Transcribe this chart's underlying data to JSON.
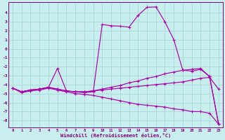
{
  "xlabel": "Windchill (Refroidissement éolien,°C)",
  "bg_color": "#c8eeed",
  "grid_color": "#a8d8d8",
  "line_color": "#800080",
  "line_color2": "#aa00aa",
  "curve_peak_x": [
    0,
    1,
    2,
    3,
    4,
    5,
    6,
    7,
    8,
    9,
    10,
    11,
    12,
    13,
    14,
    15,
    16,
    17,
    18,
    19,
    20,
    21,
    22,
    23
  ],
  "curve_peak_y": [
    -4.4,
    -4.8,
    -4.6,
    -4.5,
    -4.3,
    -2.2,
    -4.7,
    -4.8,
    -4.9,
    -4.8,
    2.7,
    2.55,
    2.5,
    2.4,
    3.7,
    4.6,
    4.65,
    3.0,
    1.0,
    -2.4,
    -2.5,
    -2.3,
    -3.1,
    -8.4
  ],
  "curve_mid_x": [
    0,
    1,
    2,
    3,
    4,
    5,
    6,
    7,
    8,
    9,
    10,
    11,
    12,
    13,
    14,
    15,
    16,
    17,
    18,
    19,
    20,
    21,
    22,
    23
  ],
  "curve_mid_y": [
    -4.4,
    -4.8,
    -4.6,
    -4.5,
    -4.3,
    -4.5,
    -4.7,
    -4.8,
    -4.8,
    -4.7,
    -4.5,
    -4.3,
    -4.1,
    -3.8,
    -3.6,
    -3.3,
    -3.1,
    -2.8,
    -2.6,
    -2.4,
    -2.3,
    -2.2,
    -3.1,
    -8.4
  ],
  "curve_flat_x": [
    0,
    1,
    2,
    3,
    4,
    5,
    6,
    7,
    8,
    9,
    10,
    11,
    12,
    13,
    14,
    15,
    16,
    17,
    18,
    19,
    20,
    21,
    22,
    23
  ],
  "curve_flat_y": [
    -4.4,
    -4.8,
    -4.6,
    -4.5,
    -4.3,
    -4.5,
    -4.7,
    -4.8,
    -4.8,
    -4.7,
    -4.6,
    -4.5,
    -4.4,
    -4.3,
    -4.2,
    -4.1,
    -4.0,
    -3.9,
    -3.8,
    -3.7,
    -3.5,
    -3.3,
    -3.2,
    -4.5
  ],
  "curve_diag_x": [
    0,
    1,
    2,
    3,
    4,
    5,
    6,
    7,
    8,
    9,
    10,
    11,
    12,
    13,
    14,
    15,
    16,
    17,
    18,
    19,
    20,
    21,
    22,
    23
  ],
  "curve_diag_y": [
    -4.4,
    -4.9,
    -4.7,
    -4.6,
    -4.4,
    -4.6,
    -4.8,
    -5.0,
    -5.1,
    -5.2,
    -5.4,
    -5.6,
    -5.8,
    -6.0,
    -6.2,
    -6.3,
    -6.4,
    -6.5,
    -6.7,
    -6.8,
    -7.0,
    -7.0,
    -7.2,
    -8.4
  ],
  "xlim": [
    -0.5,
    23.5
  ],
  "ylim": [
    -8.8,
    5.2
  ],
  "yticks": [
    4,
    3,
    2,
    1,
    0,
    -1,
    -2,
    -3,
    -4,
    -5,
    -6,
    -7,
    -8
  ],
  "xticks": [
    0,
    1,
    2,
    3,
    4,
    5,
    6,
    7,
    8,
    9,
    10,
    11,
    12,
    13,
    14,
    15,
    16,
    17,
    18,
    19,
    20,
    21,
    22,
    23
  ]
}
